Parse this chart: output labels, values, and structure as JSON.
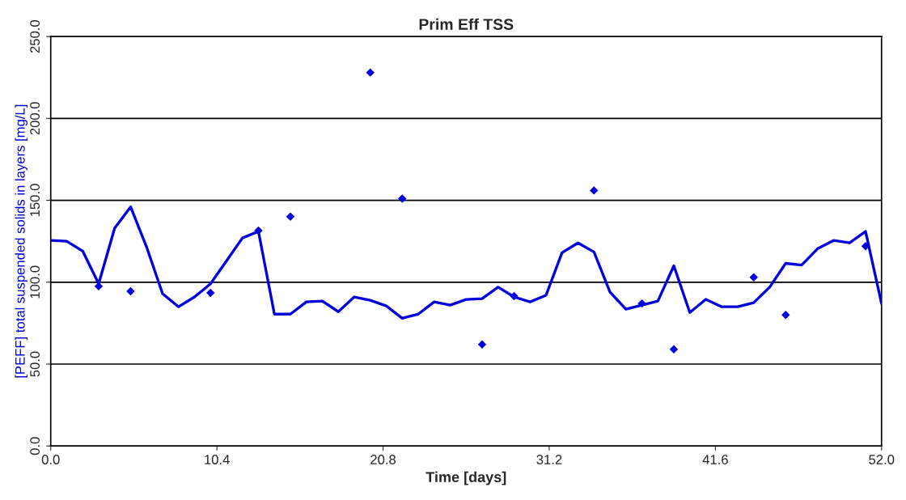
{
  "chart_data": {
    "type": "line",
    "title": "Prim Eff TSS",
    "xlabel": "Time [days]",
    "ylabel": "[PEFF] total suspended solids in layers [mg/L]",
    "xlim": [
      0,
      52
    ],
    "ylim": [
      0,
      250
    ],
    "xticks": [
      {
        "value": 0,
        "label": "0.0"
      },
      {
        "value": 10.4,
        "label": "10.4"
      },
      {
        "value": 20.8,
        "label": "20.8"
      },
      {
        "value": 31.2,
        "label": "31.2"
      },
      {
        "value": 41.6,
        "label": "41.6"
      },
      {
        "value": 52,
        "label": "52.0"
      }
    ],
    "yticks": [
      {
        "value": 0,
        "label": "0.0"
      },
      {
        "value": 50,
        "label": "50.0"
      },
      {
        "value": 100,
        "label": "100.0"
      },
      {
        "value": 150,
        "label": "150.0"
      },
      {
        "value": 200,
        "label": "200.0"
      },
      {
        "value": 250,
        "label": "250.0"
      }
    ],
    "grid": "y",
    "series": [
      {
        "color": "#0000dd",
        "marker": "none",
        "line_style": "solid",
        "x": [
          0,
          1,
          2,
          3,
          4,
          5,
          6,
          7,
          8,
          9,
          10,
          11,
          12,
          13,
          14,
          15,
          16,
          17,
          18,
          19,
          20,
          21,
          22,
          23,
          24,
          25,
          26,
          27,
          28,
          29,
          30,
          31,
          32,
          33,
          34,
          35,
          36,
          37,
          38,
          39,
          40,
          41,
          42,
          43,
          44,
          45,
          46,
          47,
          48,
          49,
          50,
          51,
          52
        ],
        "values": [
          125.5,
          125,
          119,
          99,
          133,
          146,
          121.5,
          93,
          85,
          91,
          99,
          113,
          127,
          131,
          80.5,
          80.5,
          88,
          88.5,
          82,
          91,
          89,
          85.5,
          78,
          80.5,
          88,
          86,
          89.5,
          90,
          97,
          91,
          88,
          92,
          118,
          124,
          118.5,
          94,
          83.5,
          86,
          88.5,
          110,
          81.5,
          89.5,
          85,
          85,
          87.5,
          97,
          111.5,
          110.5,
          120.5,
          125.5,
          124,
          131,
          87
        ]
      },
      {
        "type": "scatter",
        "color": "#0000dd",
        "marker": "diamond",
        "x": [
          3,
          5,
          10,
          13,
          15,
          20,
          22,
          27,
          29,
          34,
          37,
          39,
          44,
          46,
          51
        ],
        "values": [
          97.5,
          94.5,
          93.5,
          131.5,
          140,
          228,
          151,
          62,
          91.5,
          156,
          87,
          59,
          103,
          80,
          122
        ]
      }
    ]
  }
}
